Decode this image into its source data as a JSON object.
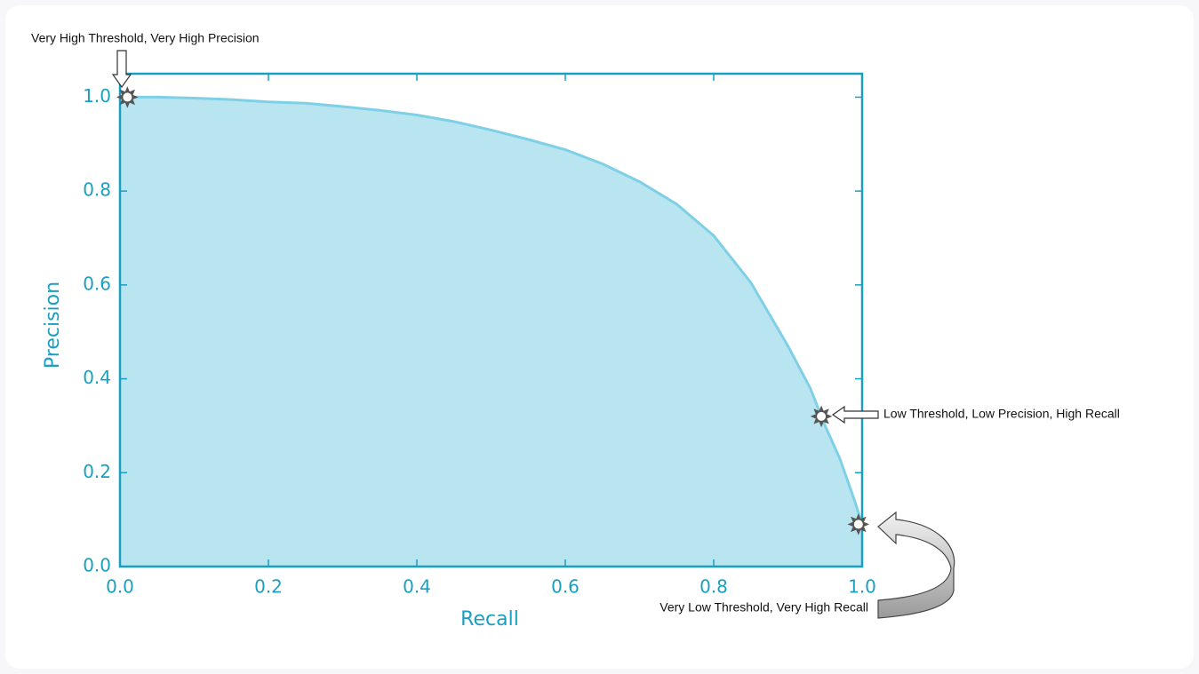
{
  "chart_data": {
    "type": "area",
    "x_label": "Recall",
    "y_label": "Precision",
    "x": [
      0,
      0.05,
      0.1,
      0.15,
      0.2,
      0.25,
      0.3,
      0.35,
      0.4,
      0.45,
      0.5,
      0.55,
      0.6,
      0.65,
      0.7,
      0.75,
      0.8,
      0.85,
      0.9,
      0.93,
      0.95,
      0.97,
      0.99,
      1.0
    ],
    "series": [
      {
        "name": "Precision",
        "color": "#7fd0e6",
        "fill": "#b9e5f1",
        "values": [
          1.0,
          1.0,
          0.998,
          0.995,
          0.99,
          0.987,
          0.98,
          0.972,
          0.962,
          0.948,
          0.93,
          0.91,
          0.888,
          0.858,
          0.82,
          0.772,
          0.705,
          0.605,
          0.47,
          0.38,
          0.3,
          0.23,
          0.14,
          0.09
        ]
      }
    ],
    "xlim": [
      0,
      1
    ],
    "ylim": [
      0,
      1.05
    ],
    "xticks": [
      {
        "value": 0,
        "label": "0.0"
      },
      0.2,
      0.4,
      0.6,
      0.8,
      {
        "value": 1,
        "label": "1.0"
      }
    ],
    "yticks": [
      {
        "value": 0,
        "label": "0.0"
      },
      0.2,
      0.4,
      0.6,
      0.8,
      {
        "value": 1,
        "label": "1.0"
      }
    ],
    "axis_color": "#1a9fc0",
    "annotations": [
      {
        "text": "Very High Threshold, Very High Precision",
        "x": 0.01,
        "y": 1.0
      },
      {
        "text": "Low Threshold, Low Precision, High Recall",
        "x": 0.945,
        "y": 0.32
      },
      {
        "text": "Very Low Threshold, Very High Recall",
        "x": 0.995,
        "y": 0.09
      }
    ]
  }
}
